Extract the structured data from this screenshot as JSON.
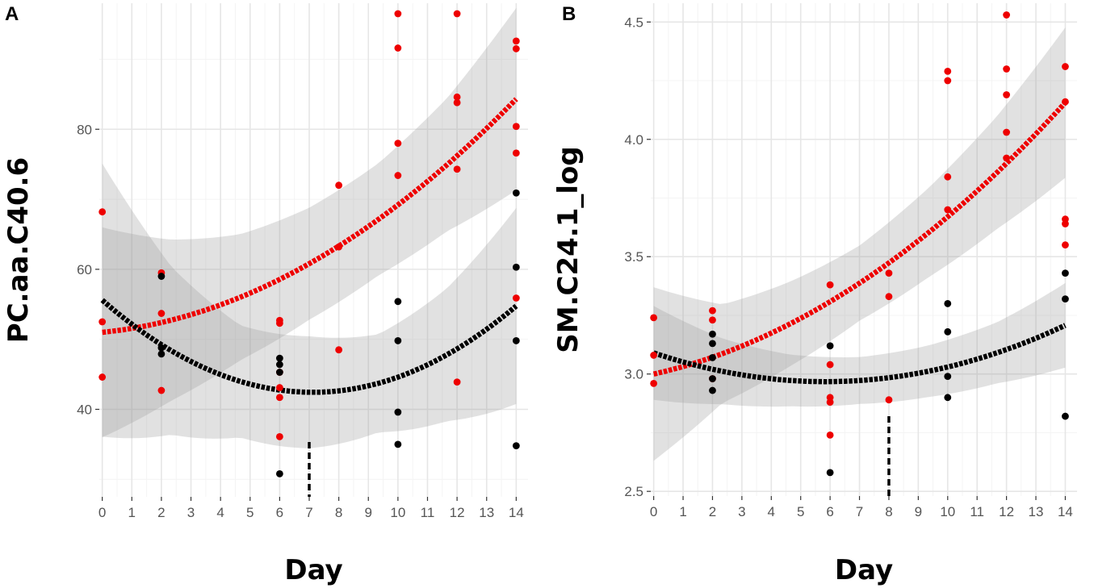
{
  "chart_data": [
    {
      "type": "scatter",
      "panel_label": "A",
      "xlabel": "Day",
      "ylabel": "PC.aa.C40.6",
      "xlim": [
        -0.1,
        14.4
      ],
      "ylim": [
        27.5,
        98
      ],
      "x_ticks": [
        0,
        1,
        2,
        3,
        4,
        5,
        6,
        7,
        8,
        9,
        10,
        11,
        12,
        13,
        14
      ],
      "x_tick_labels": [
        "0",
        "1",
        "2",
        "3",
        "4",
        "5",
        "6",
        "7",
        "8",
        "9",
        "10",
        "11",
        "12",
        "13",
        "14"
      ],
      "y_ticks": [
        40,
        60,
        80
      ],
      "y_tick_labels": [
        "40",
        "60",
        "80"
      ],
      "marker_day": 7,
      "series": [
        {
          "name": "red",
          "color": "#ee0000",
          "points": [
            [
              0,
              68.2
            ],
            [
              0,
              52.5
            ],
            [
              0,
              44.6
            ],
            [
              2,
              59.5
            ],
            [
              2,
              53.7
            ],
            [
              2,
              42.7
            ],
            [
              6,
              52.7
            ],
            [
              6,
              52.3
            ],
            [
              6,
              45.3
            ],
            [
              6,
              43.1
            ],
            [
              6,
              41.7
            ],
            [
              6,
              36.1
            ],
            [
              8,
              72.0
            ],
            [
              8,
              63.2
            ],
            [
              8,
              48.5
            ],
            [
              10,
              96.5
            ],
            [
              10,
              91.6
            ],
            [
              10,
              78.0
            ],
            [
              10,
              73.4
            ],
            [
              12,
              96.5
            ],
            [
              12,
              84.6
            ],
            [
              12,
              83.8
            ],
            [
              12,
              74.3
            ],
            [
              12,
              43.9
            ],
            [
              14,
              92.6
            ],
            [
              14,
              91.5
            ],
            [
              14,
              80.4
            ],
            [
              14,
              76.6
            ],
            [
              14,
              55.9
            ]
          ],
          "fit_coeffs": [
            51.0,
            0.42,
            0.14
          ],
          "ci_halfwidth": [
            15.0,
            11.5,
            9.0,
            8.0,
            8.0,
            9.5,
            13.0
          ]
        },
        {
          "name": "black",
          "color": "#000000",
          "points": [
            [
              2,
              59.0
            ],
            [
              2,
              48.8
            ],
            [
              2,
              47.9
            ],
            [
              6,
              47.3
            ],
            [
              6,
              46.4
            ],
            [
              6,
              45.3
            ],
            [
              6,
              30.8
            ],
            [
              10,
              55.4
            ],
            [
              10,
              49.8
            ],
            [
              10,
              39.6
            ],
            [
              10,
              35.0
            ],
            [
              14,
              70.9
            ],
            [
              14,
              60.3
            ],
            [
              14,
              49.8
            ],
            [
              14,
              34.8
            ]
          ],
          "fit_coeffs": [
            55.6,
            -3.7,
            0.26
          ],
          "ci_halfwidth": [
            19.5,
            12.0,
            8.0,
            8.0,
            7.0,
            9.5,
            14.0
          ]
        }
      ]
    },
    {
      "type": "scatter",
      "panel_label": "B",
      "xlabel": "Day",
      "ylabel": "SM.C24.1_log",
      "xlim": [
        -0.1,
        14.4
      ],
      "ylim": [
        2.48,
        4.58
      ],
      "x_ticks": [
        0,
        1,
        2,
        3,
        4,
        5,
        6,
        7,
        8,
        9,
        10,
        11,
        12,
        13,
        14
      ],
      "x_tick_labels": [
        "0",
        "1",
        "2",
        "3",
        "4",
        "5",
        "6",
        "7",
        "8",
        "9",
        "10",
        "11",
        "12",
        "13",
        "14"
      ],
      "y_ticks": [
        2.5,
        3.0,
        3.5,
        4.0,
        4.5
      ],
      "y_tick_labels": [
        "2.5",
        "3.0",
        "3.5",
        "4.0",
        "4.5"
      ],
      "marker_day": 8,
      "series": [
        {
          "name": "red",
          "color": "#ee0000",
          "points": [
            [
              0,
              3.24
            ],
            [
              0,
              3.08
            ],
            [
              0,
              2.96
            ],
            [
              2,
              3.27
            ],
            [
              2,
              3.23
            ],
            [
              2,
              2.98
            ],
            [
              6,
              3.38
            ],
            [
              6,
              3.04
            ],
            [
              6,
              2.9
            ],
            [
              6,
              2.88
            ],
            [
              6,
              2.74
            ],
            [
              8,
              3.43
            ],
            [
              8,
              3.33
            ],
            [
              8,
              2.89
            ],
            [
              10,
              4.29
            ],
            [
              10,
              4.25
            ],
            [
              10,
              3.84
            ],
            [
              10,
              3.7
            ],
            [
              12,
              4.53
            ],
            [
              12,
              4.3
            ],
            [
              12,
              4.19
            ],
            [
              12,
              4.03
            ],
            [
              12,
              3.92
            ],
            [
              14,
              4.31
            ],
            [
              14,
              4.16
            ],
            [
              14,
              3.66
            ],
            [
              14,
              3.64
            ],
            [
              14,
              3.55
            ]
          ],
          "fit_coeffs": [
            3.0,
            0.028,
            0.0039
          ],
          "ci_halfwidth": [
            0.37,
            0.21,
            0.18,
            0.16,
            0.19,
            0.24,
            0.32
          ]
        },
        {
          "name": "black",
          "color": "#000000",
          "points": [
            [
              2,
              3.17
            ],
            [
              2,
              3.13
            ],
            [
              2,
              3.07
            ],
            [
              2,
              2.98
            ],
            [
              2,
              2.93
            ],
            [
              6,
              3.12
            ],
            [
              6,
              2.58
            ],
            [
              10,
              3.3
            ],
            [
              10,
              3.18
            ],
            [
              10,
              2.99
            ],
            [
              10,
              2.9
            ],
            [
              14,
              3.43
            ],
            [
              14,
              3.32
            ],
            [
              14,
              2.82
            ]
          ],
          "fit_coeffs": [
            3.09,
            -0.042,
            0.0036
          ],
          "ci_halfwidth": [
            0.2,
            0.14,
            0.11,
            0.1,
            0.11,
            0.13,
            0.18
          ]
        }
      ]
    }
  ]
}
